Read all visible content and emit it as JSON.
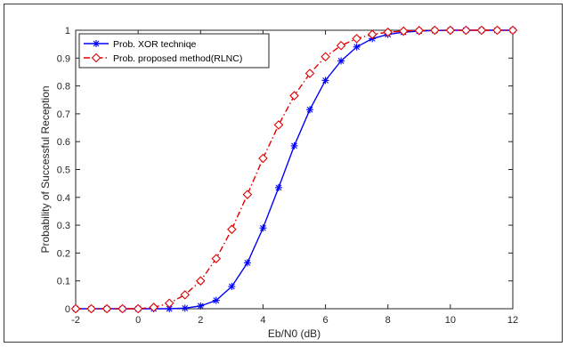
{
  "chart_data": {
    "type": "line",
    "xlabel": "Eb/N0 (dB)",
    "ylabel": "Probability of Successful Reception",
    "xlim": [
      -2,
      12
    ],
    "ylim": [
      0,
      1
    ],
    "xticks": [
      "-2",
      "0",
      "2",
      "4",
      "6",
      "8",
      "10",
      "12"
    ],
    "yticks": [
      "0",
      "0.1",
      "0.2",
      "0.3",
      "0.4",
      "0.5",
      "0.6",
      "0.7",
      "0.8",
      "0.9",
      "1"
    ],
    "grid": false,
    "legend_position": "top-left",
    "x": [
      -2,
      -1.5,
      -1,
      -0.5,
      0,
      0.5,
      1,
      1.5,
      2,
      2.5,
      3,
      3.5,
      4,
      4.5,
      5,
      5.5,
      6,
      6.5,
      7,
      7.5,
      8,
      8.5,
      9,
      9.5,
      10,
      10.5,
      11,
      11.5,
      12
    ],
    "series": [
      {
        "name": "Prob. XOR techniqe",
        "color": "#0000ff",
        "marker": "asterisk",
        "line_style": "solid",
        "values": [
          0,
          0,
          0,
          0,
          0,
          0,
          0,
          0.002,
          0.01,
          0.03,
          0.08,
          0.165,
          0.29,
          0.435,
          0.585,
          0.715,
          0.82,
          0.89,
          0.94,
          0.97,
          0.985,
          0.993,
          0.997,
          0.999,
          1,
          1,
          1,
          1,
          1
        ]
      },
      {
        "name": "Prob. proposed method(RLNC)",
        "color": "#e00000",
        "marker": "diamond",
        "line_style": "dash-dot",
        "values": [
          0,
          0,
          0,
          0,
          0,
          0.005,
          0.02,
          0.05,
          0.1,
          0.18,
          0.285,
          0.41,
          0.54,
          0.66,
          0.765,
          0.845,
          0.905,
          0.945,
          0.97,
          0.985,
          0.993,
          0.997,
          0.999,
          1,
          1,
          1,
          1,
          1,
          1
        ]
      }
    ]
  }
}
